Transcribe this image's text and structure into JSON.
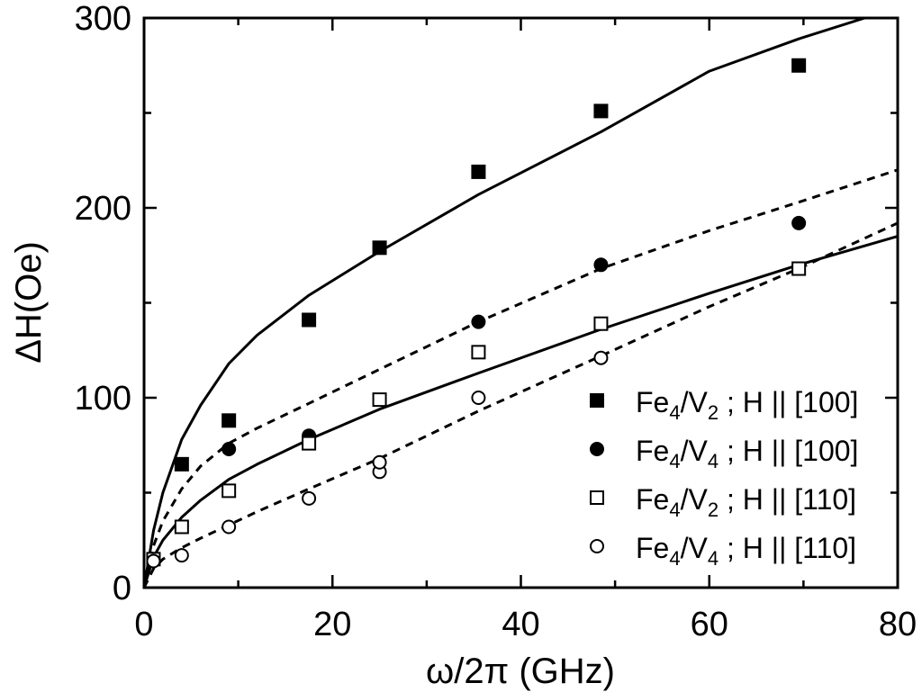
{
  "chart_data": {
    "type": "scatter",
    "xlabel": "ω/2π (GHz)",
    "ylabel": "ΔH(Oe)",
    "xlim": [
      0,
      80
    ],
    "ylim": [
      0,
      300
    ],
    "x_ticks": [
      "0",
      "20",
      "40",
      "60",
      "80"
    ],
    "y_ticks": [
      "0",
      "100",
      "200",
      "300"
    ],
    "grid": false,
    "legend_position": "bottom-right",
    "series": [
      {
        "name": "Fe4/V2 ; H || [100]",
        "legend": {
          "a": "Fe",
          "a_sub": "4",
          "b": "/V",
          "b_sub": "2",
          "rest": " ; H || [100]"
        },
        "marker": "filled-square",
        "x": [
          4.0,
          9.0,
          17.5,
          25.0,
          35.5,
          48.5,
          69.5
        ],
        "y": [
          65,
          88,
          141,
          179,
          219,
          251,
          275
        ],
        "fit": {
          "style": "solid",
          "x": [
            0,
            1,
            2,
            4,
            6,
            9,
            12,
            17.5,
            25,
            35.5,
            48.5,
            60,
            69.5,
            76.5
          ],
          "y": [
            0,
            30,
            50,
            78,
            96,
            118,
            133,
            154,
            177,
            207,
            240,
            272,
            289,
            300
          ]
        }
      },
      {
        "name": "Fe4/V4 ; H || [100]",
        "legend": {
          "a": "Fe",
          "a_sub": "4",
          "b": "/V",
          "b_sub": "4",
          "rest": " ; H || [100]"
        },
        "marker": "filled-circle",
        "x": [
          9.0,
          17.5,
          35.5,
          48.5,
          69.5
        ],
        "y": [
          73,
          80,
          140,
          170,
          192
        ],
        "fit": {
          "style": "dashed",
          "x": [
            0,
            1,
            2,
            4,
            6,
            9,
            12,
            17.5,
            25,
            35.5,
            48.5,
            60,
            69.5,
            80
          ],
          "y": [
            0,
            22,
            35,
            52,
            64,
            76,
            84,
            97,
            115,
            140,
            168,
            188,
            203,
            220
          ]
        }
      },
      {
        "name": "Fe4/V2 ; H || [110]",
        "legend": {
          "a": "Fe",
          "a_sub": "4",
          "b": "/V",
          "b_sub": "2",
          "rest": " ; H || [110]"
        },
        "marker": "open-square",
        "x": [
          1.0,
          4.0,
          9.0,
          17.5,
          25.0,
          35.5,
          48.5,
          69.5
        ],
        "y": [
          15,
          32,
          51,
          76,
          99,
          124,
          139,
          168
        ],
        "fit": {
          "style": "solid",
          "x": [
            0,
            1,
            2,
            4,
            6,
            9,
            12,
            17.5,
            25,
            35.5,
            48.5,
            60,
            69.5,
            80
          ],
          "y": [
            0,
            16,
            25,
            37,
            46,
            57,
            65,
            78,
            94,
            113,
            136,
            155,
            170,
            185
          ]
        }
      },
      {
        "name": "Fe4/V4 ; H || [110]",
        "legend": {
          "a": "Fe",
          "a_sub": "4",
          "b": "/V",
          "b_sub": "4",
          "rest": " ; H || [110]"
        },
        "marker": "open-circle",
        "x": [
          1.0,
          4.0,
          9.0,
          17.5,
          25.0,
          25.0,
          35.5,
          48.5
        ],
        "y": [
          14,
          17,
          32,
          47,
          61,
          66,
          100,
          121
        ],
        "fit": {
          "style": "dashed",
          "x": [
            0,
            1,
            2,
            4,
            6,
            9,
            12,
            17.5,
            25,
            35.5,
            48.5,
            60,
            69.5,
            80
          ],
          "y": [
            0,
            10,
            15,
            21,
            26,
            33,
            40,
            52,
            68,
            93,
            122,
            148,
            168,
            192
          ]
        }
      }
    ]
  }
}
